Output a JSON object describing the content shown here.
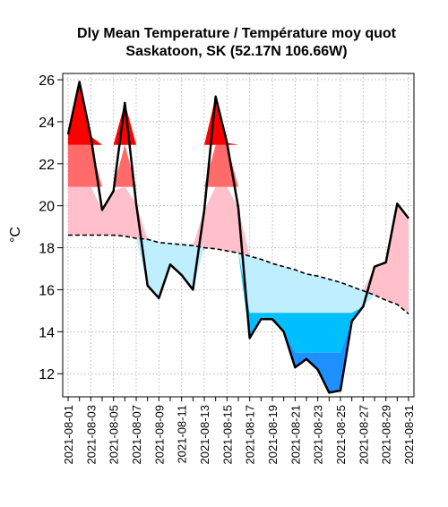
{
  "chart_data": {
    "type": "area",
    "title": "Dly Mean Temperature / Température moy quot",
    "subtitle": "Saskatoon, SK (52.17N 106.66W)",
    "ylabel": "°C",
    "xlabel": "",
    "ylim": [
      10.9,
      26.3
    ],
    "yticks": [
      12,
      14,
      16,
      18,
      20,
      22,
      24,
      26
    ],
    "grid": true,
    "dates": [
      "2021-08-01",
      "2021-08-02",
      "2021-08-03",
      "2021-08-04",
      "2021-08-05",
      "2021-08-06",
      "2021-08-07",
      "2021-08-08",
      "2021-08-09",
      "2021-08-10",
      "2021-08-11",
      "2021-08-12",
      "2021-08-13",
      "2021-08-14",
      "2021-08-15",
      "2021-08-16",
      "2021-08-17",
      "2021-08-18",
      "2021-08-19",
      "2021-08-20",
      "2021-08-21",
      "2021-08-22",
      "2021-08-23",
      "2021-08-24",
      "2021-08-25",
      "2021-08-26",
      "2021-08-27",
      "2021-08-28",
      "2021-08-29",
      "2021-08-30",
      "2021-08-31"
    ],
    "xtick_labels": [
      "2021-08-01",
      "2021-08-03",
      "2021-08-05",
      "2021-08-07",
      "2021-08-09",
      "2021-08-11",
      "2021-08-13",
      "2021-08-15",
      "2021-08-17",
      "2021-08-19",
      "2021-08-21",
      "2021-08-23",
      "2021-08-25",
      "2021-08-27",
      "2021-08-29",
      "2021-08-31"
    ],
    "series": [
      {
        "values": [
          23.4,
          25.9,
          23.3,
          19.8,
          20.7,
          24.9,
          20.1,
          16.2,
          15.6,
          17.2,
          16.7,
          16.0,
          19.8,
          25.2,
          23.0,
          19.9,
          13.7,
          14.6,
          14.6,
          14.0,
          12.3,
          12.7,
          12.2,
          11.1,
          11.2,
          14.5,
          15.2,
          17.1,
          17.3,
          20.1,
          19.4
        ],
        "color": "#000000"
      },
      {
        "values": [
          18.6,
          18.6,
          18.6,
          18.6,
          18.6,
          18.55,
          18.45,
          18.4,
          18.25,
          18.2,
          18.15,
          18.1,
          18.0,
          17.95,
          17.85,
          17.75,
          17.6,
          17.45,
          17.25,
          17.1,
          16.95,
          16.75,
          16.65,
          16.5,
          16.35,
          16.15,
          15.95,
          15.75,
          15.5,
          15.3,
          14.85
        ],
        "color": "#000000",
        "style": "dashed"
      }
    ],
    "bands": {
      "above_1": "#ffc0cb",
      "above_2": "#ff6a6a",
      "above_3": "#ff0000",
      "below_1": "#bfefff",
      "below_2": "#00bfff",
      "below_3": "#1e90ff"
    },
    "band_offsets": {
      "upper": [
        20.9,
        22.9
      ],
      "lower": [
        14.9,
        13.0
      ]
    }
  }
}
